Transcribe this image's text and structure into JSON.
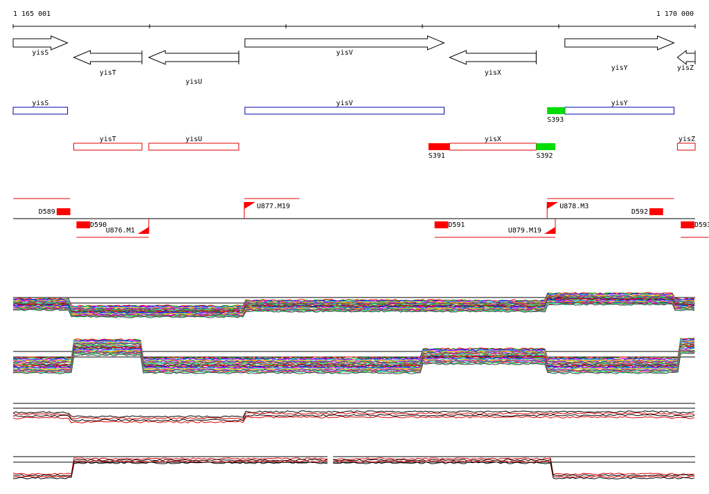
{
  "ruler": {
    "start_label": "1 165 001",
    "end_label": "1 170 000",
    "start_bp": 1165001,
    "end_bp": 1170000
  },
  "genes": [
    {
      "name": "yisS",
      "strand": "+",
      "start": 1165001,
      "end": 1165400
    },
    {
      "name": "yisT",
      "strand": "-",
      "start": 1165445,
      "end": 1165945
    },
    {
      "name": "yisU",
      "strand": "-",
      "start": 1165995,
      "end": 1166655
    },
    {
      "name": "yisV",
      "strand": "+",
      "start": 1166700,
      "end": 1168160
    },
    {
      "name": "yisX",
      "strand": "-",
      "start": 1168200,
      "end": 1168835
    },
    {
      "name": "yisY",
      "strand": "+",
      "start": 1169045,
      "end": 1169845
    },
    {
      "name": "yisZ",
      "strand": "-",
      "start": 1169870,
      "end": 1170000
    }
  ],
  "plus_segments": [
    {
      "label": "yisS",
      "start": 1165001,
      "end": 1165400
    },
    {
      "label": "yisV",
      "start": 1166700,
      "end": 1168160
    },
    {
      "label": "yisY",
      "start": 1169045,
      "end": 1169845
    }
  ],
  "minus_segments": [
    {
      "label": "yisT",
      "start": 1165445,
      "end": 1165945
    },
    {
      "label": "yisU",
      "start": 1165995,
      "end": 1166655
    },
    {
      "label": "yisX",
      "start": 1168200,
      "end": 1168835
    },
    {
      "label": "yisZ",
      "start": 1169870,
      "end": 1170000
    }
  ],
  "markers": [
    {
      "label": "S393",
      "color": "#00dd00",
      "start": 1168915,
      "end": 1169045,
      "row": "plus"
    },
    {
      "label": "S391",
      "color": "#ff0000",
      "start": 1168045,
      "end": 1168200,
      "row": "minus"
    },
    {
      "label": "S392",
      "color": "#00dd00",
      "start": 1168835,
      "end": 1168975,
      "row": "minus"
    }
  ],
  "terminators": [
    {
      "label": "D589",
      "side": "up",
      "start": 1165320,
      "end": 1165420
    },
    {
      "label": "D590",
      "side": "down",
      "start": 1165465,
      "end": 1165565
    },
    {
      "label": "D591",
      "side": "down",
      "start": 1168090,
      "end": 1168190
    },
    {
      "label": "D592",
      "side": "up",
      "start": 1169665,
      "end": 1169765
    },
    {
      "label": "D593",
      "side": "down",
      "start": 1169895,
      "end": 1169995
    }
  ],
  "promoters": [
    {
      "label": "U876.M1",
      "side": "down",
      "pos": 1165995
    },
    {
      "label": "U877.M19",
      "side": "up",
      "pos": 1166695
    },
    {
      "label": "U878.M3",
      "side": "up",
      "pos": 1168915
    },
    {
      "label": "U879.M19",
      "side": "down",
      "pos": 1168975
    }
  ],
  "colors": {
    "axis": "#000000",
    "plus_strand": "#0000aa",
    "minus_strand": "#dd0000",
    "red_marker": "#ff0000",
    "green_marker": "#00dd00"
  }
}
